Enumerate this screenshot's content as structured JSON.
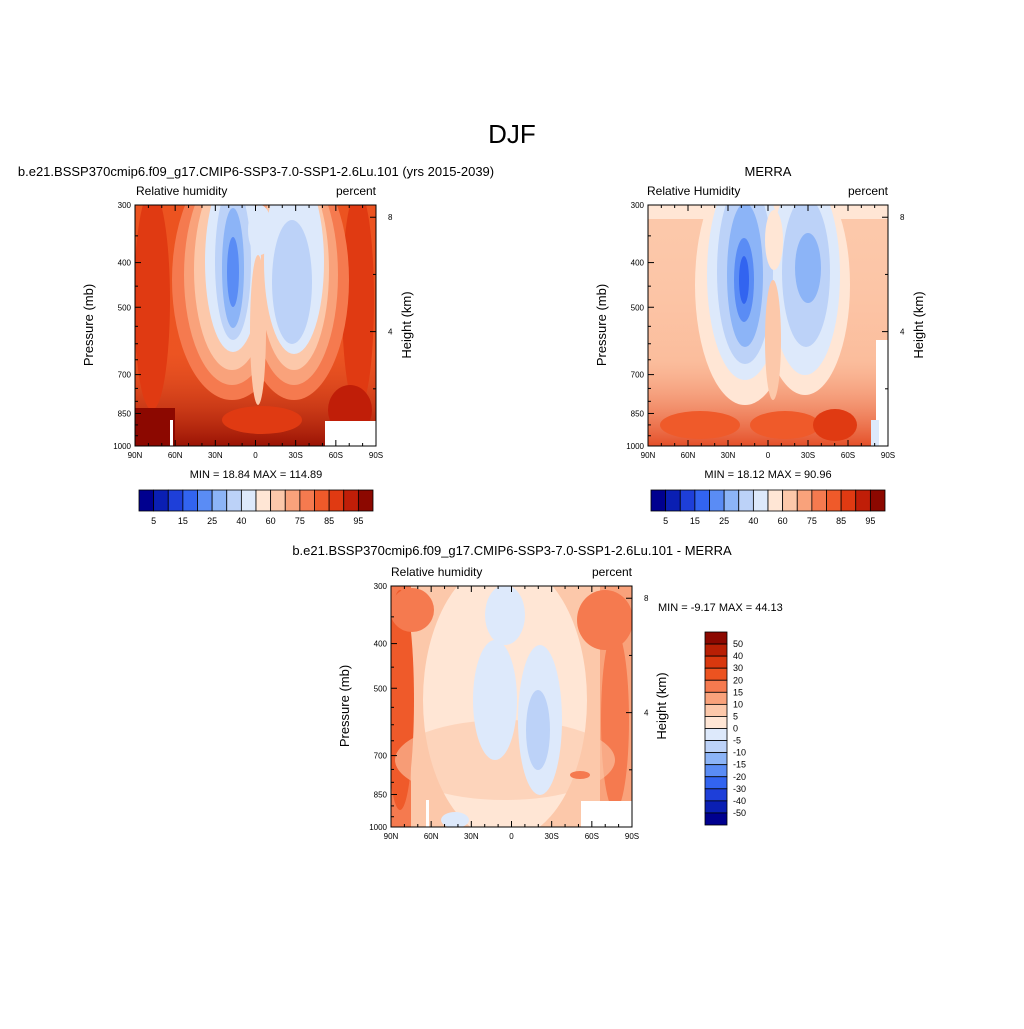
{
  "page": {
    "title": "DJF"
  },
  "colors": {
    "abs_scale": [
      "#00008f",
      "#0a1fb3",
      "#1e3fd9",
      "#3264f0",
      "#5a8cf5",
      "#8cb4f7",
      "#bcd2f8",
      "#dde9fb",
      "#ffe6d5",
      "#fcc8aa",
      "#f9a27b",
      "#f57a4f",
      "#ef5a2a",
      "#e03a12",
      "#c01e08",
      "#8c0800"
    ],
    "diff_scale": [
      "#8c0800",
      "#b81f04",
      "#d9380e",
      "#ec5320",
      "#f57a4f",
      "#f9a27b",
      "#fcc8aa",
      "#ffe6d5",
      "#dde9fb",
      "#bcd2f8",
      "#8cb4f7",
      "#5a8cf5",
      "#3264f0",
      "#1e3fd9",
      "#0a1fb3",
      "#00008f"
    ]
  },
  "chart_data": [
    {
      "type": "heatmap",
      "title": "b.e21.BSSP370cmip6.f09_g17.CMIP6-SSP3-7.0-SSP1-2.6Lu.101 (yrs 2015-2039)",
      "left_label": "Relative humidity",
      "right_label": "percent",
      "ylabel": "Pressure (mb)",
      "ylabel_right": "Height (km)",
      "x_ticks": [
        "90N",
        "60N",
        "30N",
        "0",
        "30S",
        "60S",
        "90S"
      ],
      "y_ticks": [
        "300",
        "400",
        "500",
        "700",
        "850",
        "1000"
      ],
      "y_ticks_right": [
        "8",
        "4"
      ],
      "xlim": [
        90,
        -90
      ],
      "ylim": [
        1000,
        300
      ],
      "minmax": "MIN =  18.84  MAX = 114.89",
      "colorbar_labels": [
        "5",
        "15",
        "25",
        "40",
        "60",
        "75",
        "85",
        "95"
      ]
    },
    {
      "type": "heatmap",
      "title": "MERRA",
      "left_label": "Relative Humidity",
      "right_label": "percent",
      "ylabel": "Pressure (mb)",
      "ylabel_right": "Height (km)",
      "x_ticks": [
        "90N",
        "60N",
        "30N",
        "0",
        "30S",
        "60S",
        "90S"
      ],
      "y_ticks": [
        "300",
        "400",
        "500",
        "700",
        "850",
        "1000"
      ],
      "y_ticks_right": [
        "8",
        "4"
      ],
      "xlim": [
        90,
        -90
      ],
      "ylim": [
        1000,
        300
      ],
      "minmax": "MIN =  18.12  MAX =  90.96",
      "colorbar_labels": [
        "5",
        "15",
        "25",
        "40",
        "60",
        "75",
        "85",
        "95"
      ]
    },
    {
      "type": "heatmap",
      "title": "b.e21.BSSP370cmip6.f09_g17.CMIP6-SSP3-7.0-SSP1-2.6Lu.101 - MERRA",
      "left_label": "Relative humidity",
      "right_label": "percent",
      "ylabel": "Pressure (mb)",
      "ylabel_right": "Height (km)",
      "x_ticks": [
        "90N",
        "60N",
        "30N",
        "0",
        "30S",
        "60S",
        "90S"
      ],
      "y_ticks": [
        "300",
        "400",
        "500",
        "700",
        "850",
        "1000"
      ],
      "y_ticks_right": [
        "8",
        "4"
      ],
      "xlim": [
        90,
        -90
      ],
      "ylim": [
        1000,
        300
      ],
      "minmax": "MIN =  -9.17  MAX =  44.13",
      "colorbar_labels": [
        "50",
        "40",
        "30",
        "20",
        "15",
        "10",
        "5",
        "0",
        "-5",
        "-10",
        "-15",
        "-20",
        "-30",
        "-40",
        "-50"
      ]
    }
  ]
}
